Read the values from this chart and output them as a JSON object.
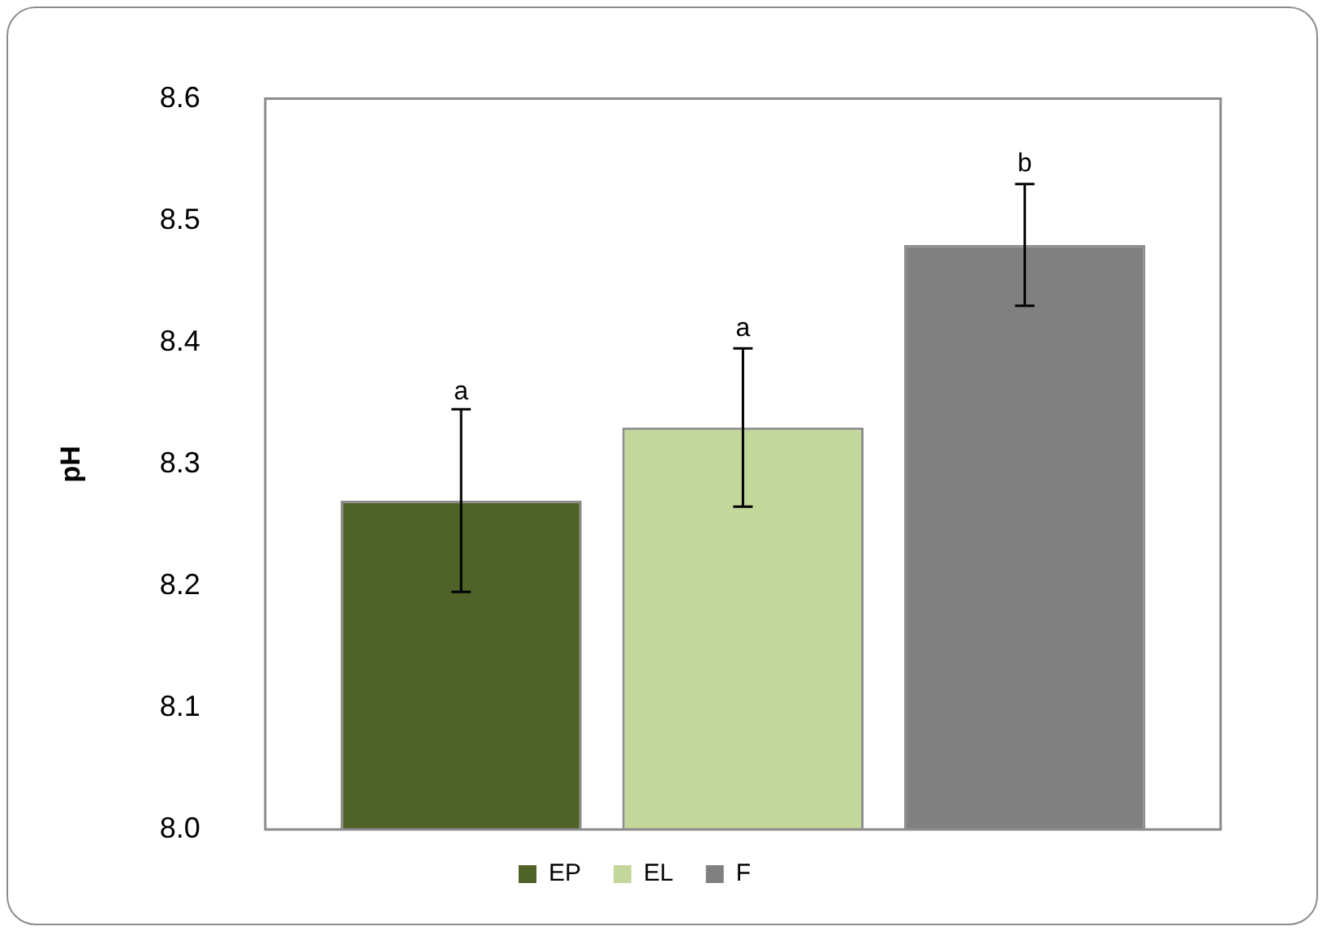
{
  "chart_data": {
    "type": "bar",
    "ylabel": "pH",
    "categories": [
      null
    ],
    "series": [
      {
        "name": "EP",
        "color": "#4f6228",
        "values": [
          8.27
        ],
        "errors": [
          0.075
        ]
      },
      {
        "name": "EL",
        "color": "#c4d79b",
        "values": [
          8.33
        ],
        "errors": [
          0.065
        ]
      },
      {
        "name": "F",
        "color": "#808080",
        "values": [
          8.48
        ],
        "errors": [
          0.05
        ]
      }
    ],
    "ylim": [
      8.0,
      8.6
    ],
    "yticks": [
      {
        "value": 8.0,
        "label": "8.0"
      },
      {
        "value": 8.1,
        "label": "8.1"
      },
      {
        "value": 8.2,
        "label": "8.2"
      },
      {
        "value": 8.3,
        "label": "8.3"
      },
      {
        "value": 8.4,
        "label": "8.4"
      },
      {
        "value": 8.5,
        "label": "8.5"
      },
      {
        "value": 8.6,
        "label": "8.6"
      }
    ],
    "annotations": [
      {
        "text": "a",
        "y": 8.343
      },
      {
        "text": "a",
        "y": 8.395
      },
      {
        "text": "b",
        "y": 8.53
      }
    ],
    "grid": false,
    "legend": "bottom"
  }
}
